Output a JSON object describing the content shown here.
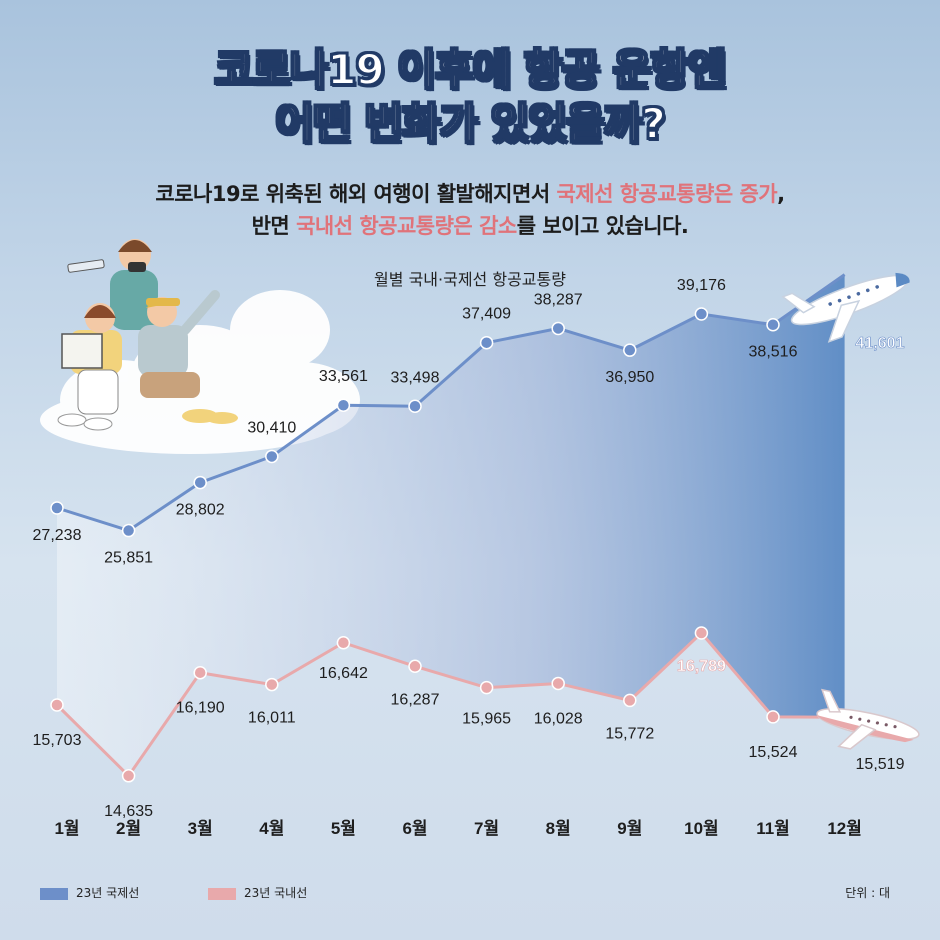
{
  "header": {
    "title_line1": "코로나19 이후에 항공 운항엔",
    "title_line2": "어떤 변화가 있었을까?",
    "subtitle_line1_a": "코로나19로 위축된 해외 여행이 활발해지면서 ",
    "subtitle_line1_highlight": "국제선 항공교통량은 증가",
    "subtitle_line1_b": ",",
    "subtitle_line2_a": "반면 ",
    "subtitle_line2_highlight": "국내선 항공교통량은 감소",
    "subtitle_line2_b": "를 보이고 있습니다."
  },
  "chart_data": {
    "type": "line",
    "title": "월별 국내·국제선 항공교통량",
    "categories": [
      "1월",
      "2월",
      "3월",
      "4월",
      "5월",
      "6월",
      "7월",
      "8월",
      "9월",
      "10월",
      "11월",
      "12월"
    ],
    "series": [
      {
        "name": "23년 국제선",
        "color": "#6d8fc9",
        "values": [
          27238,
          25851,
          28802,
          30410,
          33561,
          33498,
          37409,
          38287,
          36950,
          39176,
          38516,
          41601
        ],
        "labels": [
          "27,238",
          "25,851",
          "28,802",
          "30,410",
          "33,561",
          "33,498",
          "37,409",
          "38,287",
          "36,950",
          "39,176",
          "38,516",
          "41,601"
        ]
      },
      {
        "name": "23년 국내선",
        "color": "#e8a9ab",
        "values": [
          15703,
          14635,
          16190,
          16011,
          16642,
          16287,
          15965,
          16028,
          15772,
          16789,
          15524,
          15519
        ],
        "labels": [
          "15,703",
          "14,635",
          "16,190",
          "16,011",
          "16,642",
          "16,287",
          "15,965",
          "16,028",
          "15,772",
          "16,789",
          "15,524",
          "15,519"
        ]
      }
    ],
    "highlight_labels": {
      "international": 11,
      "domestic": 9
    },
    "unit": "단위 : 대",
    "legend_position": "bottom-left",
    "grid": false
  },
  "colors": {
    "title_outline": "#213a66",
    "highlight_text": "#e0737a",
    "international_line": "#6d8fc9",
    "domestic_line": "#e8a9ab"
  },
  "decorations": [
    "travelers-on-cloud-illustration",
    "airplane-icon-top",
    "airplane-icon-bottom",
    "cloud-icon"
  ]
}
